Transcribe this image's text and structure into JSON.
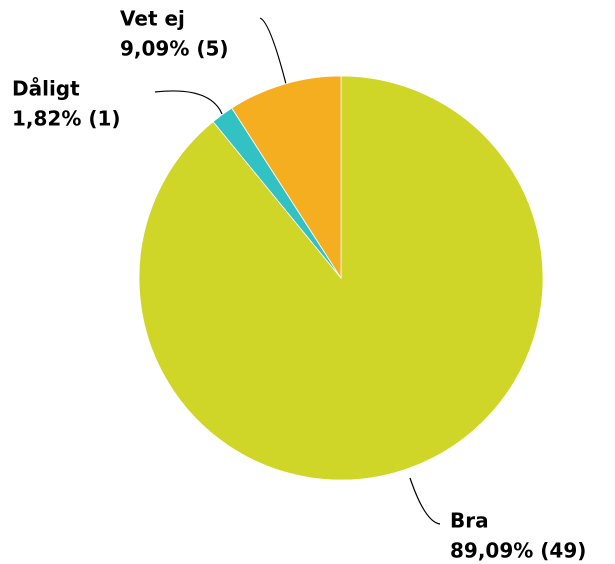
{
  "chart_data": {
    "type": "pie",
    "categories": [
      "Bra",
      "Dåligt",
      "Vet ej"
    ],
    "values": [
      89.09,
      1.82,
      9.09
    ],
    "value_labels": [
      "89,09% (49)",
      "1,82% (1)",
      "9,09% (5)"
    ],
    "colors": [
      "#cfd628",
      "#33c2c4",
      "#f6ae21"
    ]
  }
}
